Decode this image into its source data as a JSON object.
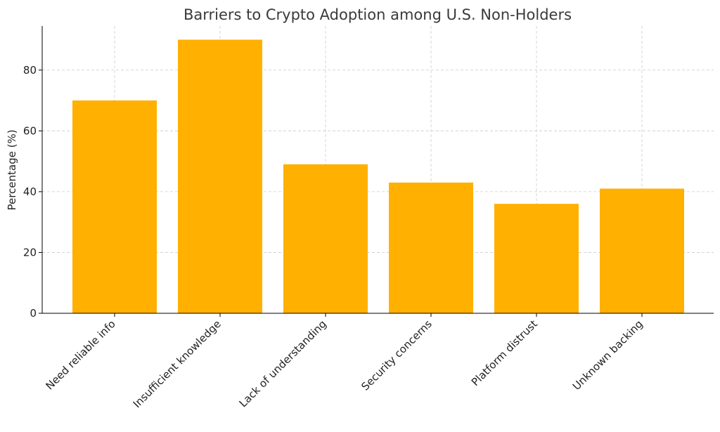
{
  "chart_data": {
    "type": "bar",
    "title": "Barriers to Crypto Adoption among U.S. Non-Holders",
    "xlabel": "",
    "ylabel": "Percentage (%)",
    "categories": [
      "Need reliable info",
      "Insufficient knowledge",
      "Lack of understanding",
      "Security concerns",
      "Platform distrust",
      "Unknown backing"
    ],
    "values": [
      70,
      90,
      49,
      43,
      36,
      41
    ],
    "ylim": [
      0,
      94.5
    ],
    "yticks": [
      0,
      20,
      40,
      60,
      80
    ],
    "grid": true,
    "bar_color": "#ffb000"
  }
}
